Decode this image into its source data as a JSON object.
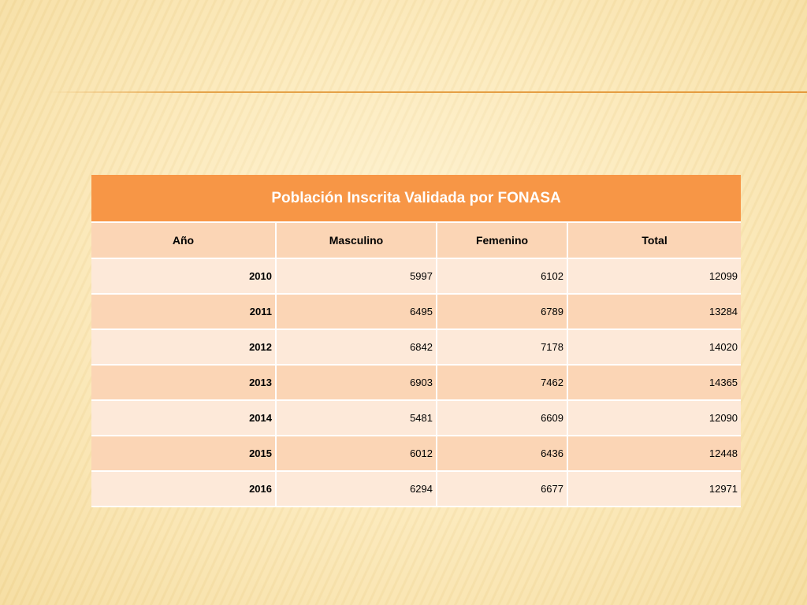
{
  "table": {
    "title": "Población Inscrita Validada por FONASA",
    "headers": [
      "Año",
      "Masculino",
      "Femenino",
      "Total"
    ],
    "rows": [
      [
        "2010",
        "5997",
        "6102",
        "12099"
      ],
      [
        "2011",
        "6495",
        "6789",
        "13284"
      ],
      [
        "2012",
        "6842",
        "7178",
        "14020"
      ],
      [
        "2013",
        "6903",
        "7462",
        "14365"
      ],
      [
        "2014",
        "5481",
        "6609",
        "12090"
      ],
      [
        "2015",
        "6012",
        "6436",
        "12448"
      ],
      [
        "2016",
        "6294",
        "6677",
        "12971"
      ]
    ]
  },
  "colors": {
    "title_background": "#f79646",
    "header_background": "#fbd5b5",
    "row_light": "#fde9d9",
    "row_dark": "#fbd5b5",
    "accent_rule": "#e59a3e",
    "slide_background": "#fbe7b6"
  }
}
